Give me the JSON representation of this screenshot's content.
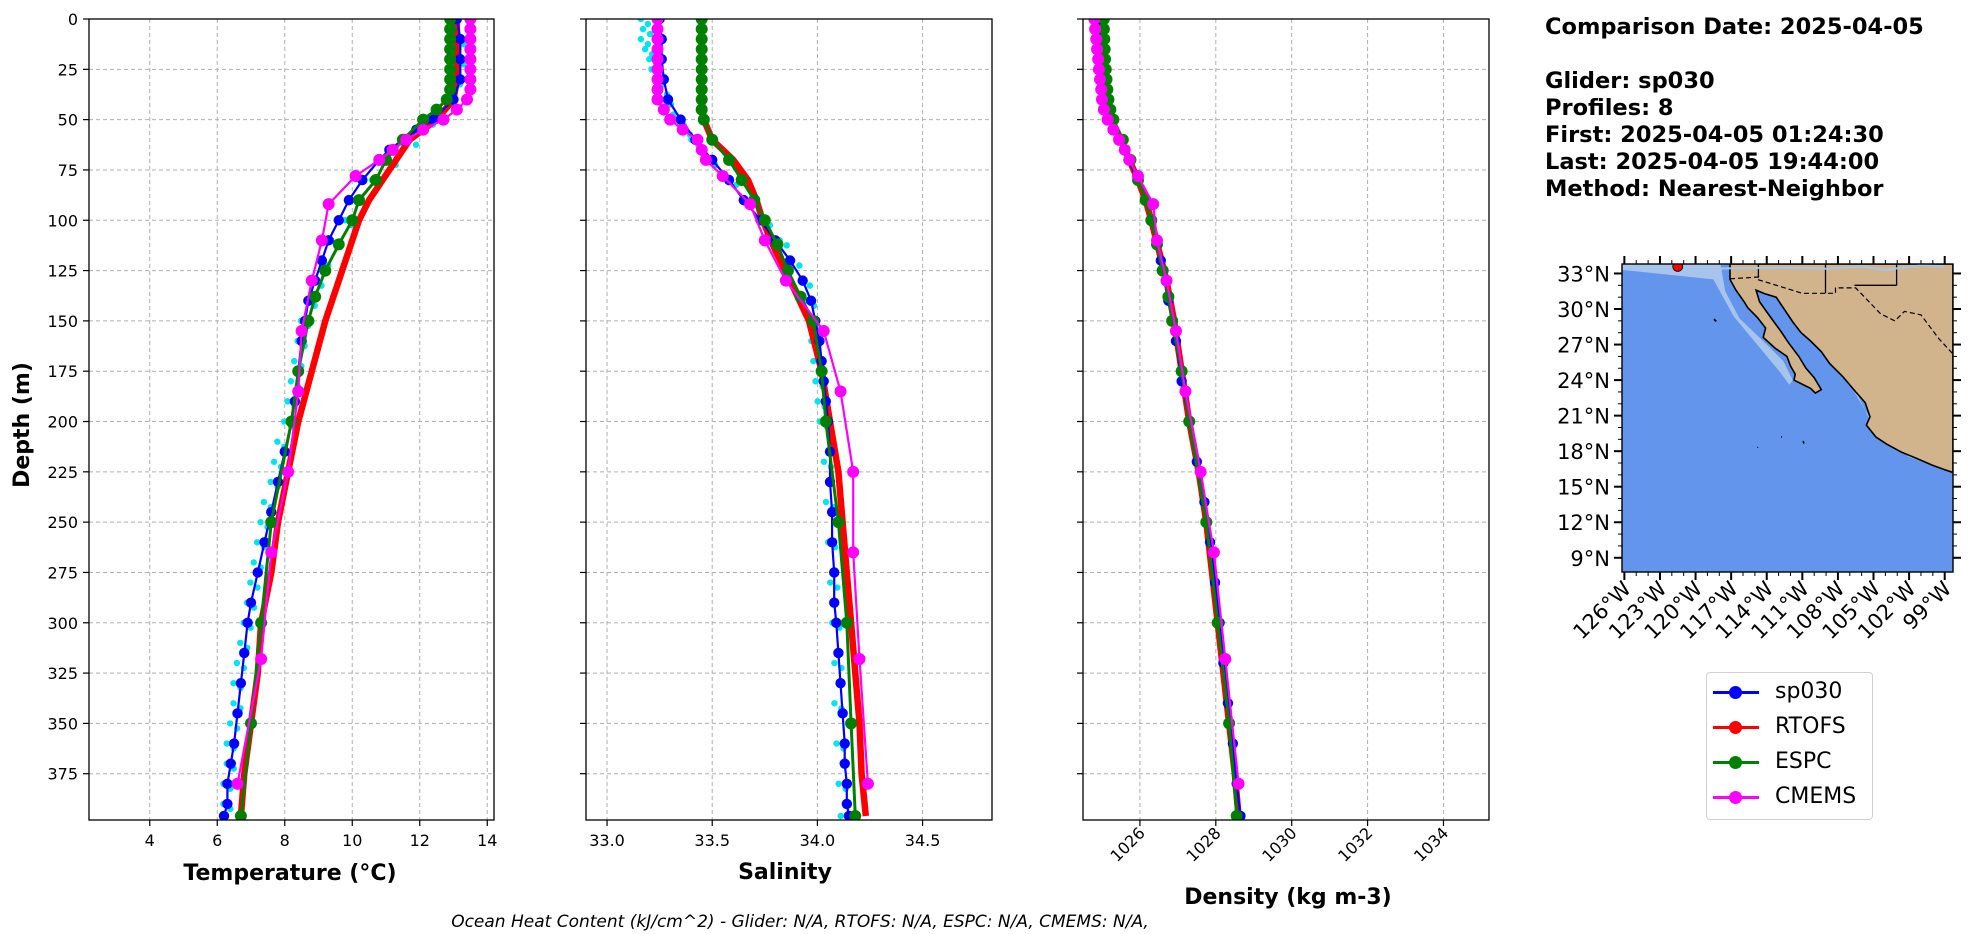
{
  "info": {
    "comparison_date": "Comparison Date: 2025-04-05",
    "glider": "Glider: sp030",
    "profiles": "Profiles: 8",
    "first": "First: 2025-04-05 01:24:30",
    "last": "Last: 2025-04-05 19:44:00",
    "method": "Method: Nearest-Neighbor"
  },
  "footer_text": "Ocean Heat Content (kJ/cm^2) - Glider: N/A,  RTOFS: N/A,  ESPC: N/A,  CMEMS: N/A,",
  "colors": {
    "sp030": "#0000ff",
    "RTOFS": "#ff0000",
    "ESPC": "#008000",
    "CMEMS": "#ff00ff",
    "glider_raw": "#00e5ee",
    "ocean": "#6495ed",
    "shelf": "#a7c4ec",
    "land": "#d2b48c"
  },
  "legend": [
    {
      "name": "sp030",
      "color": "#0000ff"
    },
    {
      "name": "RTOFS",
      "color": "#ff0000"
    },
    {
      "name": "ESPC",
      "color": "#008000"
    },
    {
      "name": "CMEMS",
      "color": "#ff00ff"
    }
  ],
  "chart_data": [
    {
      "type": "line",
      "xlabel": "Temperature (°C)",
      "ylabel": "Depth (m)",
      "xlim": [
        2.2,
        14.2
      ],
      "ylim": [
        398,
        0
      ],
      "xticks": [
        4,
        6,
        8,
        10,
        12,
        14
      ],
      "yticks": [
        0,
        25,
        50,
        75,
        100,
        125,
        150,
        175,
        200,
        225,
        250,
        275,
        300,
        325,
        350,
        375
      ],
      "grid": true,
      "glider_raw": {
        "depth": [
          10,
          20,
          30,
          40,
          50,
          60,
          70,
          80,
          90,
          100,
          110,
          120,
          130,
          140,
          150,
          160,
          170,
          180,
          190,
          200,
          210,
          220,
          230,
          240,
          250,
          260,
          270,
          280,
          290,
          300,
          310,
          320,
          330,
          340,
          350,
          360,
          370,
          380,
          390
        ],
        "value": [
          13.2,
          13.2,
          13.1,
          12.9,
          12.3,
          11.8,
          11.2,
          10.7,
          10.3,
          9.9,
          9.5,
          9.2,
          9.0,
          8.8,
          8.6,
          8.5,
          8.4,
          8.3,
          8.2,
          8.1,
          7.9,
          7.8,
          7.7,
          7.5,
          7.4,
          7.3,
          7.2,
          7.1,
          7.0,
          6.9,
          6.8,
          6.7,
          6.6,
          6.6,
          6.5,
          6.4,
          6.4,
          6.3,
          6.3
        ]
      },
      "series": [
        {
          "name": "sp030",
          "depth": [
            0,
            10,
            20,
            30,
            40,
            50,
            55,
            60,
            65,
            70,
            80,
            90,
            100,
            110,
            120,
            130,
            140,
            150,
            160,
            175,
            190,
            200,
            215,
            230,
            245,
            260,
            275,
            290,
            300,
            315,
            330,
            345,
            360,
            370,
            380,
            390,
            396
          ],
          "value": [
            13.1,
            13.2,
            13.2,
            13.2,
            13.0,
            12.4,
            11.9,
            11.5,
            11.1,
            10.8,
            10.3,
            9.9,
            9.6,
            9.3,
            9.1,
            8.9,
            8.7,
            8.6,
            8.5,
            8.4,
            8.3,
            8.2,
            8.0,
            7.8,
            7.6,
            7.4,
            7.2,
            7.0,
            6.9,
            6.8,
            6.7,
            6.6,
            6.5,
            6.4,
            6.3,
            6.3,
            6.2
          ]
        },
        {
          "name": "RTOFS",
          "depth": [
            0,
            10,
            20,
            30,
            40,
            50,
            60,
            70,
            80,
            90,
            100,
            115,
            130,
            150,
            175,
            200,
            225,
            250,
            275,
            300,
            325,
            350,
            375,
            396
          ],
          "value": [
            13.1,
            13.1,
            13.1,
            13.1,
            13.0,
            12.5,
            11.7,
            11.3,
            10.9,
            10.5,
            10.2,
            9.9,
            9.6,
            9.2,
            8.8,
            8.4,
            8.1,
            7.8,
            7.6,
            7.3,
            7.2,
            7.0,
            6.8,
            6.7
          ]
        },
        {
          "name": "ESPC",
          "depth": [
            0,
            5,
            10,
            15,
            20,
            25,
            30,
            35,
            40,
            45,
            50,
            60,
            70,
            80,
            90,
            100,
            112,
            125,
            138,
            150,
            175,
            200,
            250,
            300,
            350,
            396
          ],
          "value": [
            12.9,
            12.9,
            12.9,
            12.9,
            12.9,
            12.9,
            12.9,
            12.9,
            12.8,
            12.5,
            12.1,
            11.5,
            11.0,
            10.7,
            10.2,
            10.0,
            9.6,
            9.2,
            8.9,
            8.7,
            8.4,
            8.2,
            7.6,
            7.3,
            7.0,
            6.7
          ]
        },
        {
          "name": "CMEMS",
          "depth": [
            0,
            5,
            10,
            15,
            20,
            25,
            30,
            35,
            40,
            45,
            50,
            55,
            60,
            65,
            70,
            78,
            92,
            110,
            130,
            155,
            185,
            225,
            265,
            318,
            380
          ],
          "value": [
            13.5,
            13.5,
            13.5,
            13.5,
            13.5,
            13.5,
            13.5,
            13.5,
            13.4,
            13.1,
            12.7,
            12.1,
            11.6,
            11.2,
            10.8,
            10.1,
            9.3,
            9.1,
            8.8,
            8.5,
            8.4,
            8.1,
            7.6,
            7.3,
            6.6
          ]
        }
      ]
    },
    {
      "type": "line",
      "xlabel": "Salinity",
      "xlim": [
        32.9,
        34.83
      ],
      "ylim": [
        398,
        0
      ],
      "xticks": [
        33.0,
        33.5,
        34.0,
        34.5
      ],
      "xtick_labels": [
        "33.0",
        "33.5",
        "34.0",
        "34.5"
      ],
      "grid": true,
      "glider_raw": {
        "depth": [
          0,
          5,
          10,
          15,
          20,
          25,
          30,
          35,
          40,
          45,
          50,
          55,
          60,
          70,
          80,
          90,
          100,
          110,
          120,
          130,
          140,
          150,
          160,
          170,
          180,
          190,
          200,
          220,
          240,
          260,
          280,
          300,
          320,
          340,
          360,
          380,
          396
        ],
        "value": [
          33.18,
          33.19,
          33.18,
          33.2,
          33.22,
          33.23,
          33.25,
          33.27,
          33.29,
          33.3,
          33.35,
          33.38,
          33.42,
          33.5,
          33.6,
          33.68,
          33.76,
          33.84,
          33.9,
          33.95,
          33.97,
          33.98,
          33.99,
          34.0,
          34.01,
          34.02,
          34.03,
          34.05,
          34.06,
          34.07,
          34.08,
          34.09,
          34.1,
          34.1,
          34.11,
          34.12,
          34.13
        ]
      },
      "series": [
        {
          "name": "sp030",
          "depth": [
            0,
            10,
            20,
            30,
            40,
            50,
            60,
            70,
            80,
            90,
            100,
            110,
            120,
            130,
            140,
            150,
            160,
            170,
            180,
            190,
            200,
            215,
            230,
            245,
            260,
            275,
            290,
            300,
            315,
            330,
            345,
            360,
            370,
            380,
            390,
            396
          ],
          "value": [
            33.25,
            33.26,
            33.26,
            33.27,
            33.29,
            33.35,
            33.42,
            33.5,
            33.58,
            33.65,
            33.73,
            33.8,
            33.87,
            33.93,
            33.97,
            33.99,
            34.01,
            34.02,
            34.03,
            34.04,
            34.05,
            34.06,
            34.06,
            34.07,
            34.07,
            34.08,
            34.08,
            34.09,
            34.1,
            34.11,
            34.12,
            34.13,
            34.13,
            34.14,
            34.14,
            34.15
          ]
        },
        {
          "name": "RTOFS",
          "depth": [
            0,
            10,
            20,
            30,
            40,
            50,
            60,
            70,
            80,
            90,
            100,
            115,
            130,
            150,
            175,
            200,
            225,
            250,
            275,
            300,
            325,
            350,
            375,
            396
          ],
          "value": [
            33.45,
            33.45,
            33.45,
            33.45,
            33.45,
            33.46,
            33.5,
            33.6,
            33.67,
            33.71,
            33.74,
            33.8,
            33.87,
            33.96,
            34.02,
            34.06,
            34.1,
            34.12,
            34.14,
            34.16,
            34.18,
            34.2,
            34.21,
            34.23
          ]
        },
        {
          "name": "ESPC",
          "depth": [
            0,
            5,
            10,
            15,
            20,
            25,
            30,
            35,
            40,
            45,
            50,
            60,
            70,
            80,
            90,
            100,
            112,
            125,
            138,
            150,
            175,
            200,
            250,
            300,
            350,
            396
          ],
          "value": [
            33.45,
            33.45,
            33.45,
            33.45,
            33.45,
            33.45,
            33.45,
            33.45,
            33.45,
            33.45,
            33.46,
            33.5,
            33.58,
            33.64,
            33.7,
            33.75,
            33.81,
            33.86,
            33.92,
            33.98,
            34.02,
            34.04,
            34.1,
            34.14,
            34.16,
            34.18
          ]
        },
        {
          "name": "CMEMS",
          "depth": [
            0,
            5,
            10,
            15,
            20,
            25,
            30,
            35,
            40,
            45,
            50,
            55,
            60,
            65,
            70,
            78,
            92,
            110,
            130,
            155,
            185,
            225,
            265,
            318,
            380
          ],
          "value": [
            33.24,
            33.24,
            33.24,
            33.24,
            33.24,
            33.24,
            33.24,
            33.24,
            33.24,
            33.27,
            33.3,
            33.36,
            33.43,
            33.45,
            33.47,
            33.55,
            33.68,
            33.75,
            33.85,
            34.03,
            34.11,
            34.17,
            34.17,
            34.2,
            34.24
          ]
        }
      ]
    },
    {
      "type": "line",
      "xlabel": "Density (kg m-3)",
      "xlim": [
        1024.5,
        1035.2
      ],
      "ylim": [
        398,
        0
      ],
      "xticks": [
        1026,
        1028,
        1030,
        1032,
        1034
      ],
      "grid": true,
      "series": [
        {
          "name": "sp030",
          "depth": [
            0,
            10,
            20,
            30,
            40,
            50,
            60,
            70,
            80,
            90,
            100,
            120,
            140,
            160,
            180,
            200,
            220,
            240,
            260,
            280,
            300,
            320,
            340,
            360,
            380,
            396
          ],
          "value": [
            1024.95,
            1024.96,
            1024.98,
            1025.0,
            1025.07,
            1025.2,
            1025.45,
            1025.7,
            1025.95,
            1026.15,
            1026.3,
            1026.55,
            1026.75,
            1026.95,
            1027.1,
            1027.3,
            1027.5,
            1027.7,
            1027.85,
            1027.98,
            1028.1,
            1028.2,
            1028.32,
            1028.45,
            1028.55,
            1028.65
          ]
        },
        {
          "name": "RTOFS",
          "depth": [
            0,
            10,
            20,
            30,
            40,
            50,
            60,
            70,
            80,
            90,
            100,
            115,
            130,
            150,
            175,
            200,
            225,
            250,
            275,
            300,
            325,
            350,
            375,
            396
          ],
          "value": [
            1025.0,
            1025.0,
            1025.02,
            1025.05,
            1025.1,
            1025.25,
            1025.5,
            1025.72,
            1025.95,
            1026.15,
            1026.3,
            1026.5,
            1026.7,
            1026.9,
            1027.1,
            1027.3,
            1027.55,
            1027.75,
            1027.9,
            1028.05,
            1028.2,
            1028.35,
            1028.5,
            1028.6
          ]
        },
        {
          "name": "ESPC",
          "depth": [
            0,
            5,
            10,
            15,
            20,
            25,
            30,
            35,
            40,
            45,
            50,
            60,
            70,
            80,
            90,
            100,
            112,
            125,
            138,
            150,
            175,
            200,
            250,
            300,
            350,
            396
          ],
          "value": [
            1025.05,
            1025.05,
            1025.06,
            1025.07,
            1025.08,
            1025.1,
            1025.12,
            1025.14,
            1025.17,
            1025.22,
            1025.3,
            1025.55,
            1025.75,
            1025.95,
            1026.15,
            1026.3,
            1026.45,
            1026.6,
            1026.75,
            1026.85,
            1027.1,
            1027.3,
            1027.75,
            1028.05,
            1028.35,
            1028.55
          ]
        },
        {
          "name": "CMEMS",
          "depth": [
            0,
            5,
            10,
            15,
            20,
            25,
            30,
            35,
            40,
            45,
            50,
            55,
            60,
            65,
            70,
            78,
            92,
            110,
            130,
            155,
            185,
            225,
            265,
            318,
            380
          ],
          "value": [
            1024.8,
            1024.82,
            1024.85,
            1024.87,
            1024.9,
            1024.92,
            1024.95,
            1024.98,
            1025.0,
            1025.05,
            1025.15,
            1025.3,
            1025.45,
            1025.6,
            1025.72,
            1025.95,
            1026.35,
            1026.45,
            1026.7,
            1026.95,
            1027.2,
            1027.6,
            1027.95,
            1028.25,
            1028.6
          ]
        }
      ]
    },
    {
      "type": "map",
      "lat_ticks": [
        "33°N",
        "30°N",
        "27°N",
        "24°N",
        "21°N",
        "18°N",
        "15°N",
        "12°N",
        "9°N"
      ],
      "lat_values": [
        33,
        30,
        27,
        24,
        21,
        18,
        15,
        12,
        9
      ],
      "lon_ticks": [
        "126°W",
        "123°W",
        "120°W",
        "117°W",
        "114°W",
        "111°W",
        "108°W",
        "105°W",
        "102°W",
        "99°W"
      ],
      "lon_values": [
        -126,
        -123,
        -120,
        -117,
        -114,
        -111,
        -108,
        -105,
        -102,
        -99
      ],
      "lon_range": [
        -126.2,
        -98.3
      ],
      "lat_range": [
        7.8,
        33.8
      ],
      "glider_position": {
        "lon": -121.5,
        "lat": 33.6
      }
    }
  ]
}
